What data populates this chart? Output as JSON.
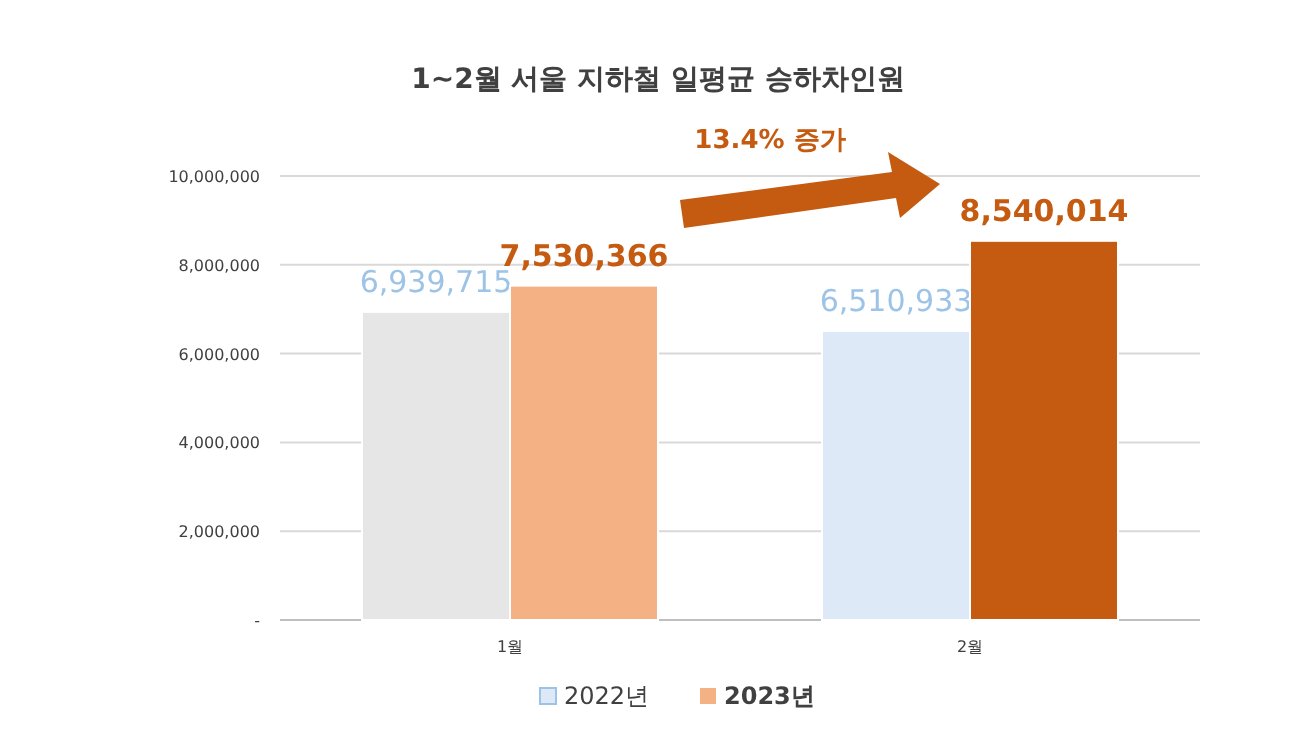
{
  "chart_data": {
    "type": "bar",
    "title": "1~2월 서울 지하철 일평균 승하차인원",
    "categories": [
      "1월",
      "2월"
    ],
    "series": [
      {
        "name": "2022년",
        "color": "#dde9f6",
        "colors": [
          "#e6e6e6",
          "#dde9f6"
        ],
        "values": [
          6939715,
          6510933
        ],
        "value_labels": [
          "6,939,715",
          "6,510,933"
        ]
      },
      {
        "name": "2023년",
        "color": "#f4b183",
        "colors": [
          "#f4b183",
          "#c55a11"
        ],
        "values": [
          7530366,
          8540014
        ],
        "value_labels": [
          "7,530,366",
          "8,540,014"
        ]
      }
    ],
    "ylim": [
      0,
      10000000
    ],
    "yticks": [
      {
        "value": 0,
        "label": "-"
      },
      {
        "value": 2000000,
        "label": "2,000,000"
      },
      {
        "value": 4000000,
        "label": "4,000,000"
      },
      {
        "value": 6000000,
        "label": "6,000,000"
      },
      {
        "value": 8000000,
        "label": "8,000,000"
      },
      {
        "value": 10000000,
        "label": "10,000,000"
      }
    ],
    "grid": "y",
    "legend": "bottom",
    "annotations": [
      "13.4% 증가"
    ]
  }
}
